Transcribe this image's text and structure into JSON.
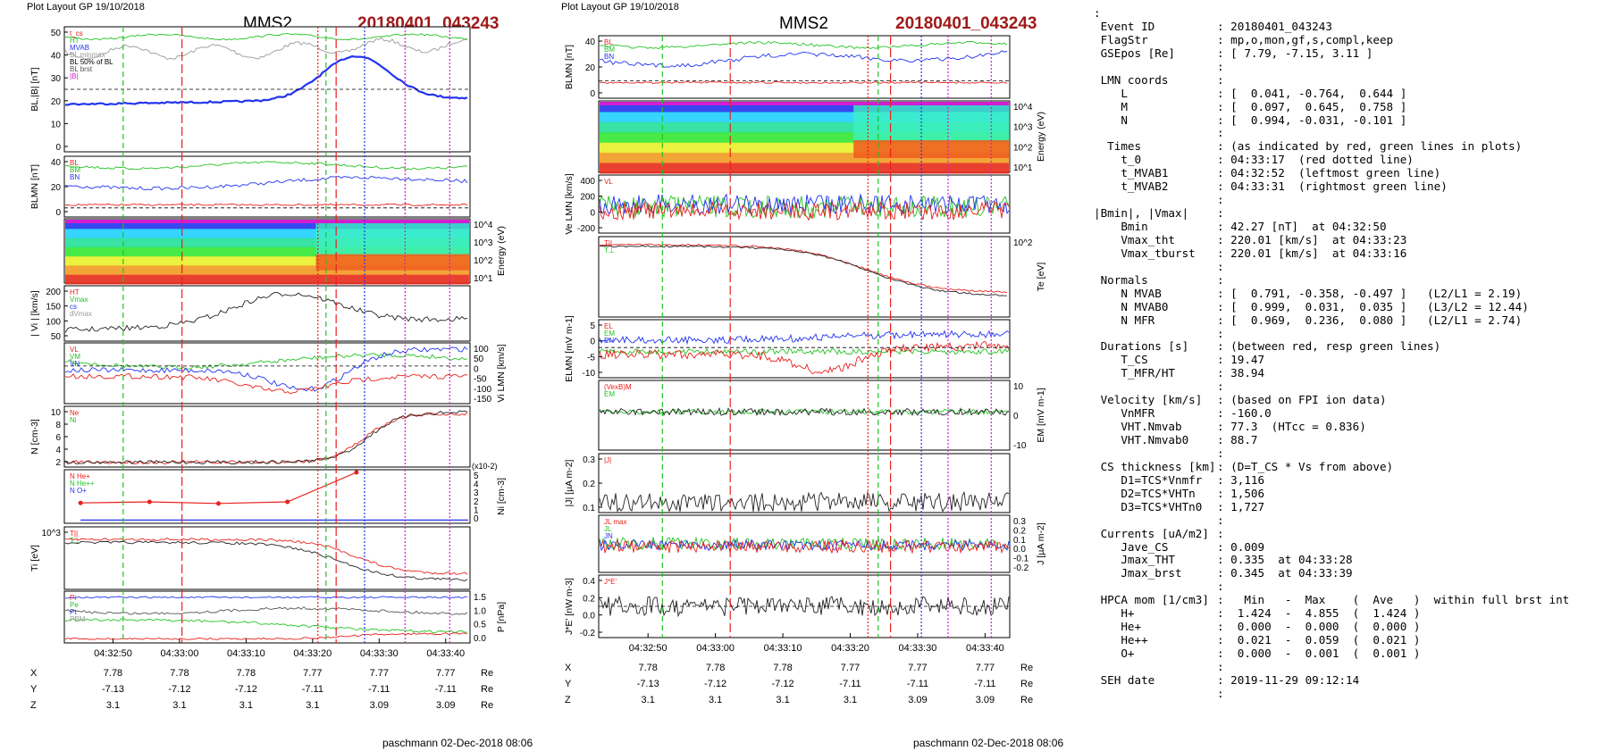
{
  "left": {
    "header_left": "Plot Layout GP 19/10/2018",
    "sc": "MMS2",
    "event": "20180401_043243",
    "footer": "paschmann 02-Dec-2018 08:06",
    "xticks": [
      "04:32:50",
      "04:33:00",
      "04:33:10",
      "04:33:20",
      "04:33:30",
      "04:33:40"
    ],
    "ephem": {
      "rows": [
        {
          "name": "X",
          "vals": [
            "7.78",
            "7.78",
            "7.78",
            "7.77",
            "7.77",
            "7.77"
          ],
          "unit": "Re"
        },
        {
          "name": "Y",
          "vals": [
            "-7.13",
            "-7.12",
            "-7.12",
            "-7.11",
            "-7.11",
            "-7.11"
          ],
          "unit": "Re"
        },
        {
          "name": "Z",
          "vals": [
            "3.1",
            "3.1",
            "3.1",
            "3.1",
            "3.09",
            "3.09"
          ],
          "unit": "Re"
        }
      ]
    },
    "panels": [
      {
        "ylabel": "BL,|B| [nT]",
        "ticks": [
          "50",
          "40",
          "30",
          "20",
          "10",
          "0"
        ],
        "legend": [
          "t_cs",
          "HT",
          "MVAB",
          "BL minmax",
          "BL 50% of BL",
          "BL brst",
          "|B|"
        ]
      },
      {
        "ylabel": "BLMN [nT]",
        "ticks": [
          "40",
          "20",
          "0"
        ],
        "legend": [
          "BL",
          "BM",
          "BN"
        ]
      },
      {
        "ylabel": "Energy (eV)",
        "ticks_right": [
          "10^4",
          "10^3",
          "10^2",
          "10^1"
        ]
      },
      {
        "ylabel": "| Vi | [km/s]",
        "ticks": [
          "200",
          "150",
          "100",
          "50"
        ],
        "legend": [
          "HT",
          "Vmax",
          "cs",
          "dVmax"
        ]
      },
      {
        "ylabel": "Vi LMN [km/s]",
        "ticks_right": [
          "100",
          "50",
          "0",
          "-50",
          "-100",
          "-150"
        ],
        "legend": [
          "VL",
          "VM",
          "VN"
        ]
      },
      {
        "ylabel": "N [cm-3]",
        "ticks": [
          "10",
          "8",
          "6",
          "4",
          "2"
        ],
        "legend": [
          "Ne",
          "Ni"
        ]
      },
      {
        "ylabel": "Ni [cm-3]",
        "ticks_right": [
          "5",
          "4",
          "3",
          "2",
          "1",
          "0"
        ],
        "legend": [
          "N He+",
          "N He++",
          "N O+"
        ],
        "scale": "(x10-2)"
      },
      {
        "ylabel": "Ti [eV]",
        "ticks": [
          "10^3"
        ],
        "legend": [
          "T||",
          "T⊥"
        ]
      },
      {
        "ylabel": "P [nPa]",
        "ticks_right": [
          "1.5",
          "1.0",
          "0.5",
          "0.0"
        ],
        "legend": [
          "Pi",
          "Pe",
          "Pt",
          "PBM"
        ]
      }
    ]
  },
  "middle": {
    "header_left": "Plot Layout GP 19/10/2018",
    "sc": "MMS2",
    "event": "20180401_043243",
    "footer": "paschmann 02-Dec-2018 08:06",
    "xticks": [
      "04:32:50",
      "04:33:00",
      "04:33:10",
      "04:33:20",
      "04:33:30",
      "04:33:40"
    ],
    "ephem": {
      "rows": [
        {
          "name": "X",
          "vals": [
            "7.78",
            "7.78",
            "7.78",
            "7.77",
            "7.77",
            "7.77"
          ],
          "unit": "Re"
        },
        {
          "name": "Y",
          "vals": [
            "-7.13",
            "-7.12",
            "-7.12",
            "-7.11",
            "-7.11",
            "-7.11"
          ],
          "unit": "Re"
        },
        {
          "name": "Z",
          "vals": [
            "3.1",
            "3.1",
            "3.1",
            "3.1",
            "3.09",
            "3.09"
          ],
          "unit": "Re"
        }
      ]
    },
    "panels": [
      {
        "ylabel": "BLMN [nT]",
        "ticks": [
          "40",
          "20",
          "0"
        ],
        "legend": [
          "BL",
          "BM",
          "BN"
        ]
      },
      {
        "ylabel": "Energy (eV)",
        "ticks_right": [
          "10^4",
          "10^3",
          "10^2",
          "10^1"
        ]
      },
      {
        "ylabel": "Ve LMN [km/s]",
        "ticks": [
          "400",
          "200",
          "0",
          "-200"
        ],
        "legend": [
          "VL"
        ]
      },
      {
        "ylabel": "Te [eV]",
        "ticks_right": [
          "10^2"
        ],
        "legend": [
          "T||",
          "T⊥"
        ]
      },
      {
        "ylabel": "ELMN [mV m-1]",
        "ticks": [
          "5",
          "0",
          "-5",
          "-10"
        ],
        "legend": [
          "EL",
          "EM",
          "EN"
        ]
      },
      {
        "ylabel": "EM [mV m-1]",
        "ticks_right": [
          "10",
          "0",
          "-10"
        ],
        "legend": [
          "(VexB)M",
          "EM"
        ]
      },
      {
        "ylabel": "|J| [µA m-2]",
        "ticks": [
          "0.3",
          "0.2",
          "0.1"
        ],
        "legend": [
          "|J|"
        ]
      },
      {
        "ylabel": "J [µA m-2]",
        "ticks_right": [
          "0.3",
          "0.2",
          "0.1",
          "0.0",
          "-0.1",
          "-0.2"
        ],
        "legend": [
          "JL max",
          "JL",
          "JN"
        ]
      },
      {
        "ylabel": "J*E' [nW m-3]",
        "ticks": [
          "0.4",
          "0.2",
          "0.0",
          "-0.2"
        ],
        "legend": [
          "J*E'"
        ]
      }
    ]
  },
  "summary": [
    {
      "k": ":",
      "v": ""
    },
    {
      "k": " Event ID",
      "v": ": 20180401_043243"
    },
    {
      "k": " FlagStr",
      "v": ": mp,o,mon,gf,s,compl,keep"
    },
    {
      "k": " GSEpos [Re]",
      "v": ": [ 7.79, -7.15, 3.11 ]"
    },
    {
      "k": "",
      "v": ":"
    },
    {
      "k": " LMN coords",
      "v": ":"
    },
    {
      "k": "    L",
      "v": ": [  0.041, -0.764,  0.644 ]"
    },
    {
      "k": "    M",
      "v": ": [  0.097,  0.645,  0.758 ]"
    },
    {
      "k": "    N",
      "v": ": [  0.994, -0.031, -0.101 ]"
    },
    {
      "k": "",
      "v": ":"
    },
    {
      "k": "  Times",
      "v": ": (as indicated by red, green lines in plots)"
    },
    {
      "k": "    t_0",
      "v": ": 04:33:17  (red dotted line)"
    },
    {
      "k": "    t_MVAB1",
      "v": ": 04:32:52  (leftmost green line)"
    },
    {
      "k": "    t_MVAB2",
      "v": ": 04:33:31  (rightmost green line)"
    },
    {
      "k": "",
      "v": ":"
    },
    {
      "k": "|Bmin|, |Vmax|",
      "v": ":"
    },
    {
      "k": "    Bmin",
      "v": ": 42.27 [nT]  at 04:32:50"
    },
    {
      "k": "    Vmax_tht",
      "v": ": 220.01 [km/s]  at 04:33:23"
    },
    {
      "k": "    Vmax_tburst",
      "v": ": 220.01 [km/s]  at 04:33:16"
    },
    {
      "k": "",
      "v": ":"
    },
    {
      "k": " Normals",
      "v": ":"
    },
    {
      "k": "    N MVAB",
      "v": ": [  0.791, -0.358, -0.497 ]   (L2/L1 = 2.19)"
    },
    {
      "k": "    N MVAB0",
      "v": ": [  0.999,  0.031,  0.035 ]   (L3/L2 = 12.44)"
    },
    {
      "k": "    N MFR",
      "v": ": [  0.969,  0.236,  0.080 ]   (L2/L1 = 2.74)"
    },
    {
      "k": "",
      "v": ":"
    },
    {
      "k": " Durations [s]",
      "v": ": (between red, resp green lines)"
    },
    {
      "k": "    T_CS",
      "v": ": 19.47"
    },
    {
      "k": "    T_MFR/HT",
      "v": ": 38.94"
    },
    {
      "k": "",
      "v": ":"
    },
    {
      "k": " Velocity [km/s]",
      "v": ": (based on FPI ion data)"
    },
    {
      "k": "    VnMFR",
      "v": ": -160.0"
    },
    {
      "k": "    VHT.Nmvab",
      "v": ": 77.3  (HTcc = 0.836)"
    },
    {
      "k": "    VHT.Nmvab0",
      "v": ": 88.7"
    },
    {
      "k": "",
      "v": ":"
    },
    {
      "k": " CS thickness [km]",
      "v": ": (D=T_CS * Vs from above)"
    },
    {
      "k": "    D1=TCS*Vnmfr",
      "v": ": 3,116"
    },
    {
      "k": "    D2=TCS*VHTn",
      "v": ": 1,506"
    },
    {
      "k": "    D3=TCS*VHTn0",
      "v": ": 1,727"
    },
    {
      "k": "",
      "v": ":"
    },
    {
      "k": " Currents [uA/m2]",
      "v": ":"
    },
    {
      "k": "    Jave_CS",
      "v": ": 0.009"
    },
    {
      "k": "    Jmax_THT",
      "v": ": 0.335  at 04:33:28"
    },
    {
      "k": "    Jmax_brst",
      "v": ": 0.345  at 04:33:39"
    },
    {
      "k": "",
      "v": ":"
    },
    {
      "k": " HPCA mom [1/cm3]",
      "v": ":   Min   -  Max    (  Ave   )  within full brst int"
    },
    {
      "k": "    H+",
      "v": ":  1.424  -  4.855  (  1.424 )"
    },
    {
      "k": "    He+",
      "v": ":  0.000  -  0.000  (  0.000 )"
    },
    {
      "k": "    He++",
      "v": ":  0.021  -  0.059  (  0.021 )"
    },
    {
      "k": "    O+",
      "v": ":  0.000  -  0.001  (  0.001 )"
    },
    {
      "k": "",
      "v": ":"
    },
    {
      "k": " SEH date",
      "v": ": 2019-11-29 09:12:14"
    },
    {
      "k": "",
      "v": ":"
    }
  ],
  "colors": {
    "red": "#e8201c",
    "green": "#22c322",
    "blue": "#2233ee",
    "magenta": "#d11ed1",
    "darkred": "#a01818",
    "gray": "#999999"
  }
}
